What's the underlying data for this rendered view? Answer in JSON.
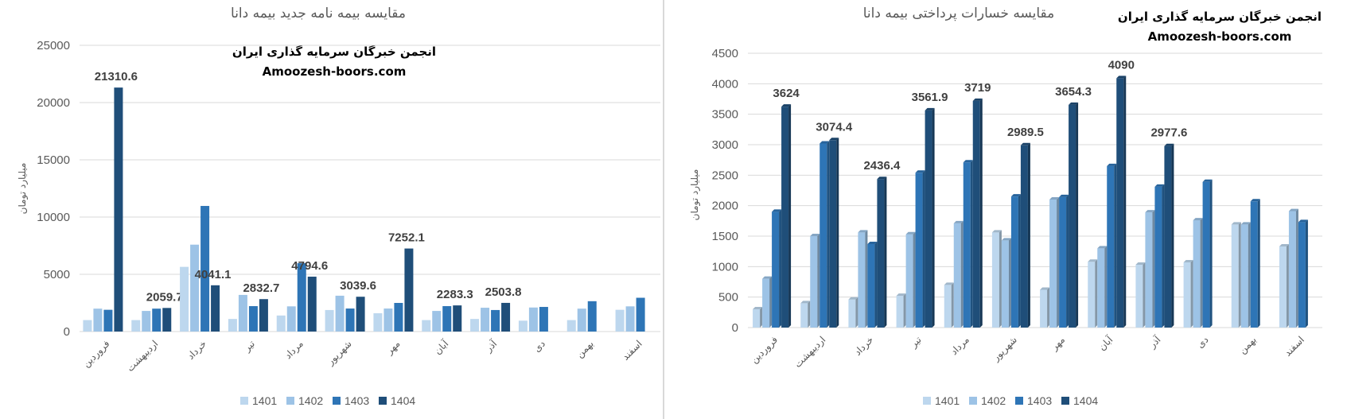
{
  "colors": {
    "1401": "#bdd7ee",
    "1402": "#9dc3e6",
    "1403": "#2e75b6",
    "1404": "#1f4e79"
  },
  "watermark": {
    "line1": "انجمن خبرگان سرمایه گذاری ایران",
    "line2": "Amoozesh-boors.com"
  },
  "chart_data": [
    {
      "type": "bar",
      "title": "مقایسه بیمه نامه جدید بیمه دانا",
      "xlabel": "",
      "ylabel": "میلیارد تومان",
      "ylim": [
        0,
        25000
      ],
      "yticks": [
        0,
        5000,
        10000,
        15000,
        20000,
        25000
      ],
      "grid": true,
      "legend": "bottom",
      "categories": [
        "فروردین",
        "اردیبهشت",
        "خرداد",
        "تیر",
        "مرداد",
        "شهریور",
        "مهر",
        "آبان",
        "آذر",
        "دی",
        "بهمن",
        "اسفند"
      ],
      "series": [
        {
          "name": "1401",
          "values": [
            1000,
            1000,
            5650,
            1100,
            1400,
            1880,
            1600,
            1000,
            1100,
            950,
            1000,
            1900
          ]
        },
        {
          "name": "1402",
          "values": [
            2000,
            1800,
            7590,
            3200,
            2200,
            3130,
            2010,
            1800,
            2080,
            2100,
            2000,
            2200
          ]
        },
        {
          "name": "1403",
          "values": [
            1900,
            2000,
            10970,
            2220,
            5970,
            2010,
            2500,
            2220,
            1880,
            2150,
            2650,
            2950
          ]
        },
        {
          "name": "1404",
          "values": [
            21310.6,
            2059.7,
            4041.1,
            2832.7,
            4794.6,
            3039.6,
            7252.1,
            2283.3,
            2503.8,
            null,
            null,
            null
          ]
        }
      ],
      "data_labels": [
        "21310.6",
        "2059.7",
        "4041.1",
        "2832.7",
        "4794.6",
        "3039.6",
        "7252.1",
        "2283.3",
        "2503.8",
        null,
        null,
        null
      ]
    },
    {
      "type": "bar",
      "title": "مقایسه خسارات پرداختی بیمه دانا",
      "xlabel": "",
      "ylabel": "میلیارد تومان",
      "ylim": [
        0,
        4500
      ],
      "yticks": [
        0,
        500,
        1000,
        1500,
        2000,
        2500,
        3000,
        3500,
        4000,
        4500
      ],
      "grid": true,
      "legend": "bottom",
      "categories": [
        "فروردین",
        "اردیبهشت",
        "خرداد",
        "تیر",
        "مرداد",
        "شهریور",
        "مهر",
        "آبان",
        "آذر",
        "دی",
        "بهمن",
        "اسفند"
      ],
      "series": [
        {
          "name": "1401",
          "values": [
            300,
            400,
            460,
            520,
            700,
            1560,
            620,
            1080,
            1030,
            1070,
            1690,
            1330
          ]
        },
        {
          "name": "1402",
          "values": [
            800,
            1500,
            1560,
            1530,
            1710,
            1430,
            2100,
            1300,
            1890,
            1760,
            1690,
            1910
          ]
        },
        {
          "name": "1403",
          "values": [
            1900,
            3020,
            1370,
            2540,
            2710,
            2150,
            2140,
            2650,
            2310,
            2390,
            2070,
            1730
          ]
        },
        {
          "name": "1404",
          "values": [
            3624,
            3074.4,
            2436.4,
            3561.9,
            3719,
            2989.5,
            3654.3,
            4090,
            2977.6,
            null,
            null,
            null
          ]
        }
      ],
      "data_labels": [
        "3624",
        "3074.4",
        "2436.4",
        "3561.9",
        "3719",
        "2989.5",
        "3654.3",
        "4090",
        "2977.6",
        null,
        null,
        null
      ]
    }
  ]
}
